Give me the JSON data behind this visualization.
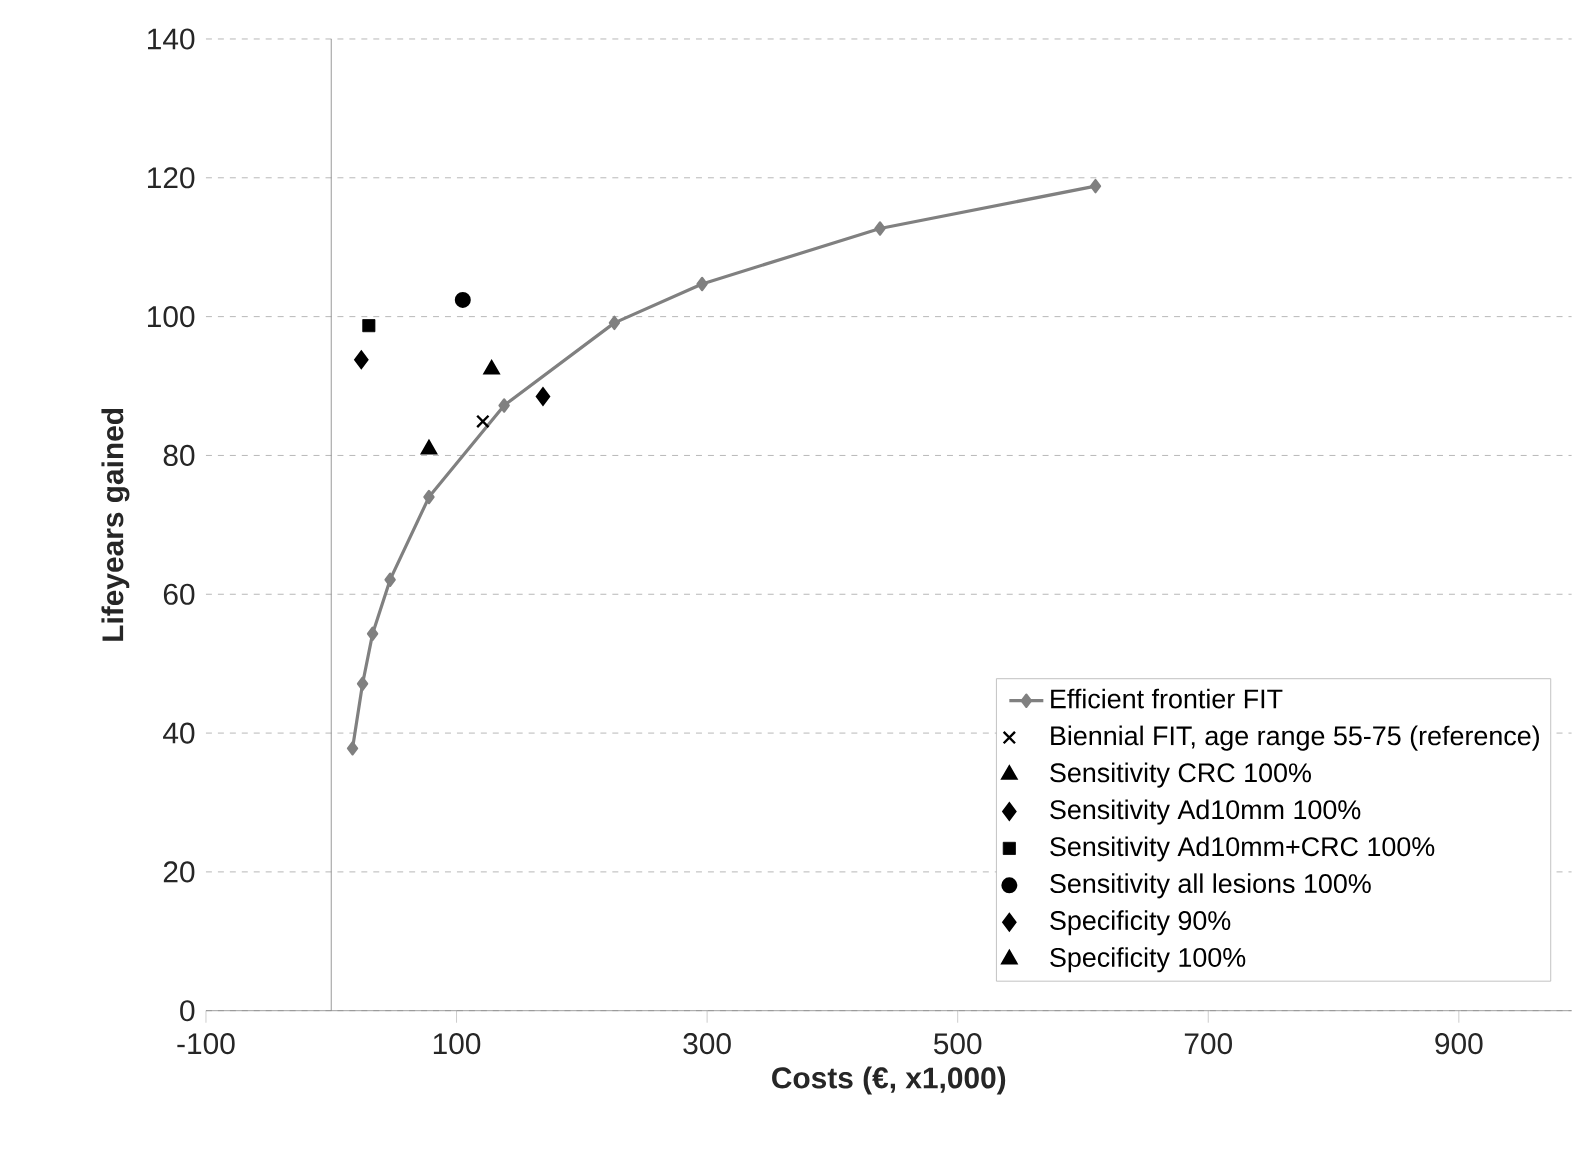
{
  "chart_data": {
    "type": "scatter",
    "xlabel": "Costs (€, x1,000)",
    "ylabel": "Lifeyears gained",
    "xlim": [
      -100,
      990
    ],
    "ylim": [
      0,
      140
    ],
    "xticks": [
      -100,
      100,
      300,
      500,
      700,
      900
    ],
    "yticks": [
      0,
      20,
      40,
      60,
      80,
      100,
      120,
      140
    ],
    "grid": "y",
    "legend": "bottom right",
    "series": [
      {
        "name": "Efficient frontier FIT",
        "type": "line",
        "color": "#808080",
        "marker": "diamond",
        "x": [
          17,
          25,
          33,
          47,
          78,
          138,
          226,
          296,
          438,
          610
        ],
        "values": [
          37.8,
          47.1,
          54.3,
          62.1,
          74.0,
          87.2,
          99.1,
          104.7,
          112.7,
          118.8
        ]
      },
      {
        "name": "Biennial FIT, age range 55-75 (reference)",
        "color": "#000000",
        "marker": "cross",
        "x": [
          121
        ],
        "values": [
          84.9
        ]
      },
      {
        "name": "Sensitivity CRC 100%",
        "color": "#000000",
        "marker": "triangle",
        "x": [
          128
        ],
        "values": [
          92.4
        ]
      },
      {
        "name": "Sensitivity Ad10mm 100%",
        "color": "#000000",
        "marker": "diamond",
        "x": [
          24
        ],
        "values": [
          93.8
        ]
      },
      {
        "name": "Sensitivity Ad10mm+CRC 100%",
        "color": "#000000",
        "marker": "square",
        "x": [
          30
        ],
        "values": [
          98.7
        ]
      },
      {
        "name": "Sensitivity all lesions 100%",
        "color": "#000000",
        "marker": "circle",
        "x": [
          105
        ],
        "values": [
          102.4
        ]
      },
      {
        "name": "Specificity 90%",
        "color": "#000000",
        "marker": "diamond",
        "x": [
          169
        ],
        "values": [
          88.5
        ]
      },
      {
        "name": "Specificity 100%",
        "color": "#000000",
        "marker": "triangle",
        "x": [
          78
        ],
        "values": [
          80.9
        ]
      }
    ]
  }
}
